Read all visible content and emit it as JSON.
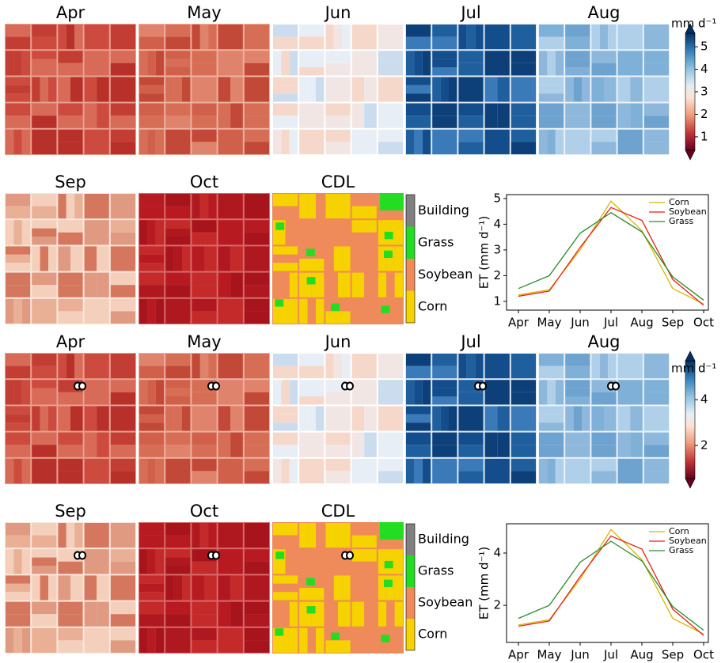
{
  "top": {
    "map_titles": [
      "Apr",
      "May",
      "Jun",
      "Jul",
      "Aug",
      "Sep",
      "Oct",
      "CDL"
    ],
    "colorbar": {
      "label": "mm d⁻¹",
      "lim": [
        0.4,
        5.6
      ],
      "ticks": [
        1,
        2,
        3,
        4,
        5
      ]
    },
    "cdl_legend": [
      {
        "label": "Building",
        "color": "#808080"
      },
      {
        "label": "Grass",
        "color": "#22dd22"
      },
      {
        "label": "Soybean",
        "color": "#ef8a5a"
      },
      {
        "label": "Corn",
        "color": "#f5d200"
      }
    ]
  },
  "bottom": {
    "map_titles": [
      "Apr",
      "May",
      "Jun",
      "Jul",
      "Aug",
      "Sep",
      "Oct",
      "CDL"
    ],
    "colorbar": {
      "label": "mm d⁻¹",
      "lim": [
        0.55,
        5.7
      ],
      "ticks": [
        2,
        4
      ]
    },
    "cdl_legend": [
      {
        "label": "Building",
        "color": "#808080"
      },
      {
        "label": "Grass",
        "color": "#22dd22"
      },
      {
        "label": "Soybean",
        "color": "#ef8a5a"
      },
      {
        "label": "Corn",
        "color": "#f5d200"
      }
    ]
  },
  "chart_data": [
    {
      "type": "line",
      "y_label": "ET (mm d⁻¹)",
      "categories": [
        "Apr",
        "May",
        "Jun",
        "Jul",
        "Aug",
        "Sep",
        "Oct"
      ],
      "series": [
        {
          "name": "Corn",
          "color": "#d4b800",
          "values": [
            1.25,
            1.45,
            3.0,
            4.9,
            3.75,
            1.5,
            0.9
          ]
        },
        {
          "name": "Soybean",
          "color": "#e8201a",
          "values": [
            1.2,
            1.4,
            3.1,
            4.65,
            4.15,
            1.85,
            0.85
          ]
        },
        {
          "name": "Grass",
          "color": "#2a8a2a",
          "values": [
            1.5,
            2.0,
            3.65,
            4.45,
            3.7,
            1.95,
            1.05
          ]
        }
      ],
      "ylim": [
        0.66,
        5.15
      ],
      "yticks": [
        1,
        2,
        3,
        4,
        5
      ],
      "legend": "upper right"
    },
    {
      "type": "line",
      "y_label": "ET (mm d⁻¹)",
      "categories": [
        "Apr",
        "May",
        "Jun",
        "Jul",
        "Aug",
        "Sep",
        "Oct"
      ],
      "series": [
        {
          "name": "Corn",
          "color": "#d4b800",
          "values": [
            1.25,
            1.45,
            3.0,
            4.9,
            3.75,
            1.5,
            0.9
          ]
        },
        {
          "name": "Soybean",
          "color": "#e8201a",
          "values": [
            1.2,
            1.4,
            3.1,
            4.65,
            4.15,
            1.85,
            0.85
          ]
        },
        {
          "name": "Grass",
          "color": "#2a8a2a",
          "values": [
            1.5,
            2.0,
            3.65,
            4.45,
            3.7,
            1.95,
            1.05
          ]
        }
      ],
      "ylim": [
        0.58,
        5.12
      ],
      "yticks": [
        2,
        4
      ],
      "legend": "upper right"
    }
  ]
}
